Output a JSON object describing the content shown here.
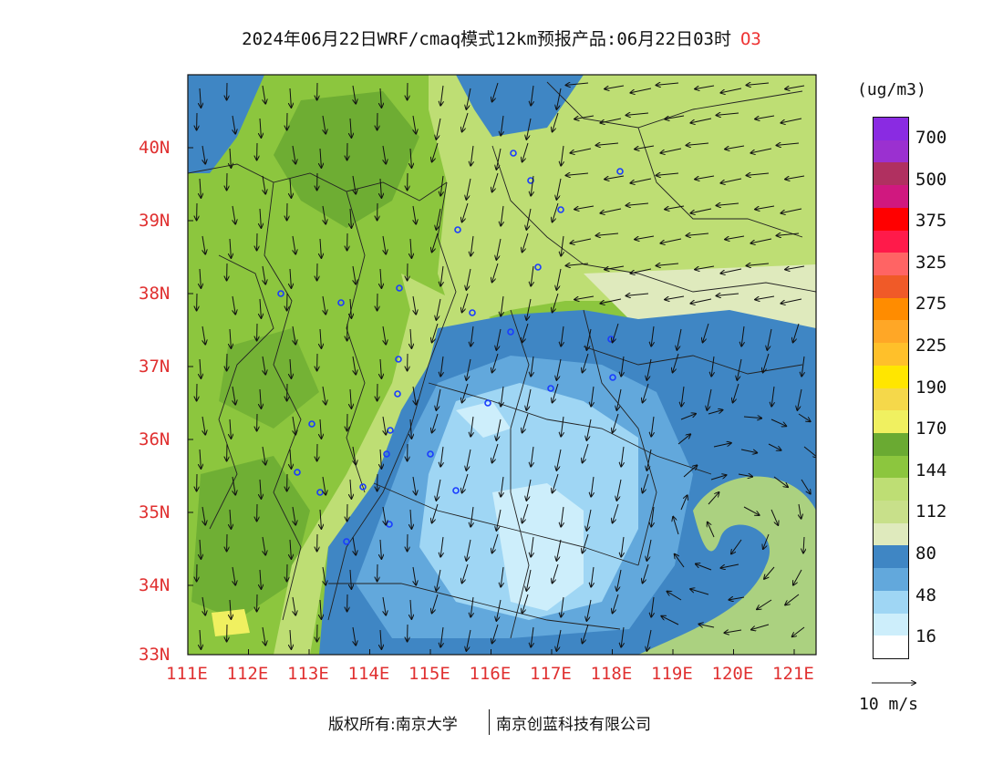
{
  "title": "2024年06月22日WRF/cmaq模式12km预报产品:06月22日03时",
  "species": "O3",
  "unit": "(ug/m3)",
  "lat_labels": [
    "40N",
    "39N",
    "38N",
    "37N",
    "36N",
    "35N",
    "34N",
    "33N"
  ],
  "lon_labels": [
    "111E",
    "112E",
    "113E",
    "114E",
    "115E",
    "116E",
    "117E",
    "118E",
    "119E",
    "120E",
    "121E"
  ],
  "legend": {
    "labels": [
      "700",
      "500",
      "375",
      "325",
      "275",
      "225",
      "190",
      "170",
      "144",
      "112",
      "80",
      "48",
      "16"
    ],
    "colors": [
      "#8a2be2",
      "#9b30d0",
      "#b03060",
      "#d0187f",
      "#ff0000",
      "#ff1a4a",
      "#ff6464",
      "#f05a28",
      "#ff8c00",
      "#ffa726",
      "#ffc02a",
      "#ffe600",
      "#f5d84a",
      "#f0f060",
      "#6aaa32",
      "#8cc63e",
      "#bede74",
      "#c8e08a",
      "#dfeabd",
      "#3f86c4",
      "#62a8dc",
      "#9fd6f4",
      "#cdeefb",
      "#ffffff"
    ]
  },
  "wind_reference": "10  m/s",
  "footer": {
    "left": "版权所有:南京大学",
    "right": "南京创蓝科技有限公司"
  },
  "colors": {
    "label_red": "#e03030",
    "region_green_dark": "#6aaa32",
    "region_green": "#8cc63e",
    "region_green_light": "#bede74",
    "region_pale": "#dfeabd",
    "region_blue": "#3f86c4",
    "region_blue_mid": "#62a8dc",
    "region_blue_light": "#9fd6f4",
    "region_blue_pale": "#cdeefb"
  }
}
